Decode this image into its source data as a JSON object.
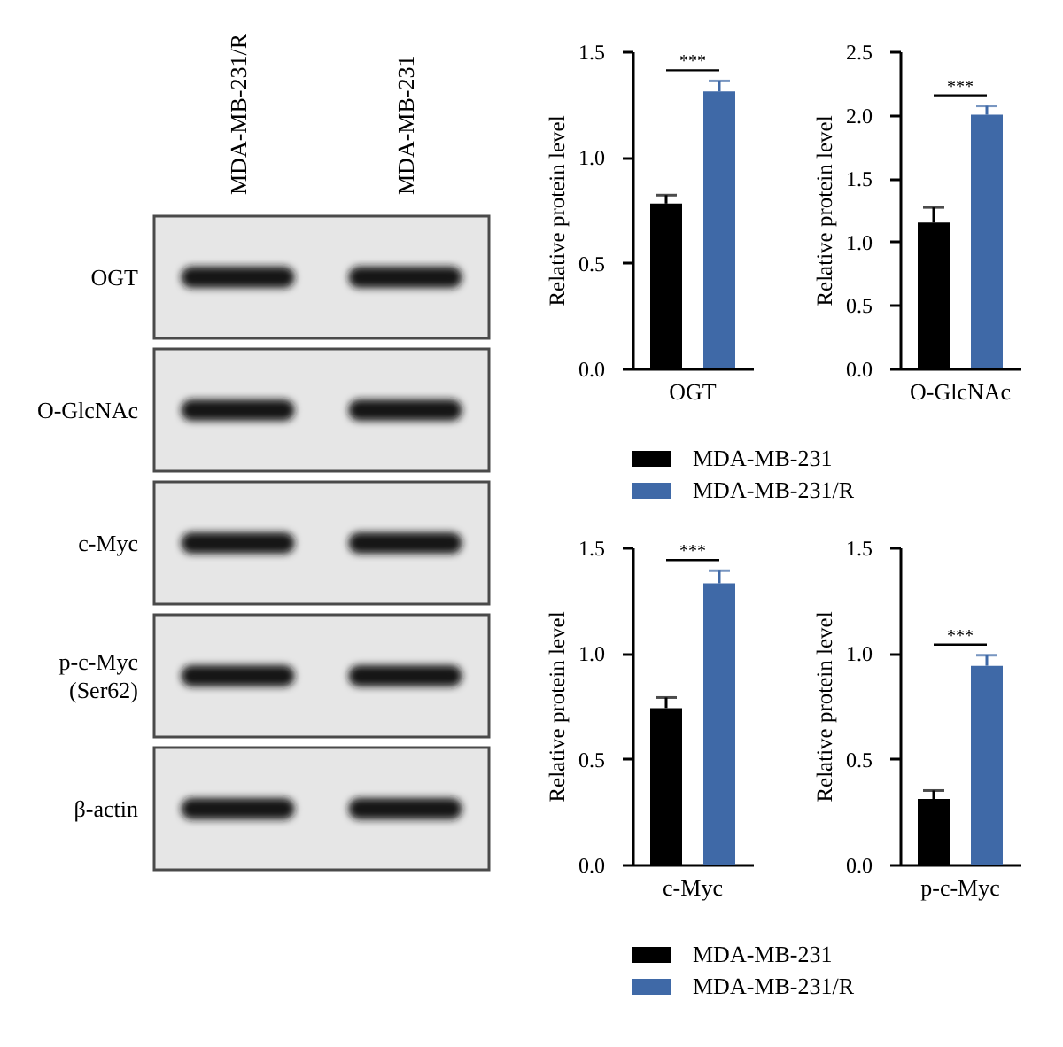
{
  "chart_data": [
    {
      "type": "other",
      "categories": [
        "MDA-MB-231/R",
        "MDA-MB-231"
      ],
      "y_categories": [
        "OGT",
        "O-GlcNAc",
        "c-Myc",
        "p-c-Myc\n(Ser62)",
        "β-actin"
      ]
    },
    {
      "type": "bar",
      "categories": [
        "OGT"
      ],
      "series": [
        {
          "name": "MDA-MB-231",
          "color": "#000000",
          "values": [
            0.78
          ],
          "errors": [
            [
              0.78,
              0.82
            ]
          ]
        },
        {
          "name": "MDA-MB-231/R",
          "color": "#3f69a7",
          "values": [
            1.31
          ],
          "errors": [
            [
              1.31,
              1.36
            ]
          ]
        }
      ],
      "ylabel": "Relative protein level",
      "ylim": [
        0,
        1.5
      ],
      "yticks": [
        {
          "value": 0,
          "label": "0.0"
        },
        0.5,
        {
          "value": 1,
          "label": "1.0"
        },
        1.5
      ],
      "annotations": [
        "***"
      ],
      "legend": "bottom"
    },
    {
      "type": "bar",
      "categories": [
        "O-GlcNAc"
      ],
      "series": [
        {
          "color": "#000000",
          "values": [
            1.15
          ],
          "errors": [
            [
              1.15,
              1.27
            ]
          ]
        },
        {
          "color": "#3f69a7",
          "values": [
            2.0
          ],
          "errors": [
            [
              2.0,
              2.07
            ]
          ]
        }
      ],
      "ylabel": "Relative protein level",
      "ylim": [
        0,
        2.5
      ],
      "yticks": [
        {
          "value": 0,
          "label": "0.0"
        },
        0.5,
        {
          "value": 1,
          "label": "1.0"
        },
        1.5,
        {
          "value": 2,
          "label": "2.0"
        },
        2.5
      ],
      "annotations": [
        "***"
      ]
    },
    {
      "type": "bar",
      "categories": [
        "c-Myc"
      ],
      "series": [
        {
          "name": "MDA-MB-231",
          "color": "#000000",
          "values": [
            0.74
          ],
          "errors": [
            [
              0.74,
              0.79
            ]
          ]
        },
        {
          "name": "MDA-MB-231/R",
          "color": "#3f69a7",
          "values": [
            1.33
          ],
          "errors": [
            [
              1.33,
              1.39
            ]
          ]
        }
      ],
      "ylabel": "Relative protein level",
      "ylim": [
        0,
        1.5
      ],
      "yticks": [
        {
          "value": 0,
          "label": "0.0"
        },
        0.5,
        {
          "value": 1,
          "label": "1.0"
        },
        1.5
      ],
      "annotations": [
        "***"
      ],
      "legend": "bottom"
    },
    {
      "type": "bar",
      "categories": [
        "p-c-Myc"
      ],
      "series": [
        {
          "color": "#000000",
          "values": [
            0.31
          ],
          "errors": [
            [
              0.31,
              0.35
            ]
          ]
        },
        {
          "color": "#3f69a7",
          "values": [
            0.94
          ],
          "errors": [
            [
              0.94,
              0.99
            ]
          ]
        }
      ],
      "ylabel": "Relative protein level",
      "ylim": [
        0,
        1.5
      ],
      "yticks": [
        {
          "value": 0,
          "label": "0.0"
        },
        0.5,
        {
          "value": 1,
          "label": "1.0"
        },
        1.5
      ],
      "annotations": [
        "***"
      ]
    }
  ]
}
